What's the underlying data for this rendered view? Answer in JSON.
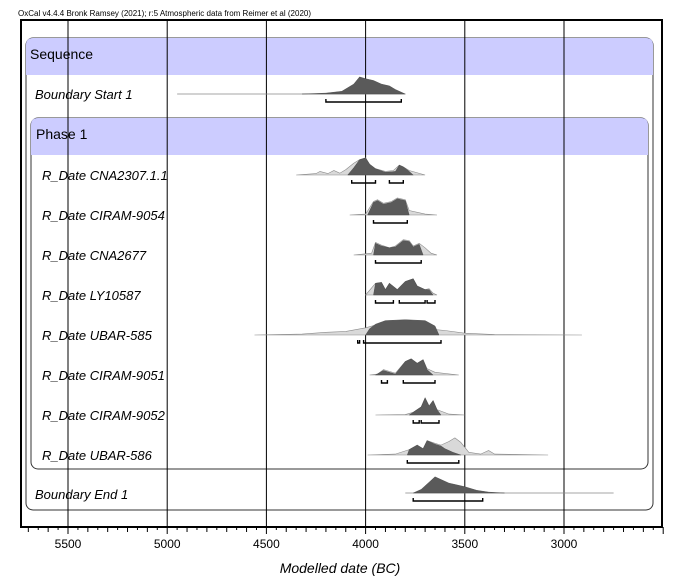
{
  "credit": "OxCal v4.4.4 Bronk Ramsey (2021); r:5 Atmospheric data from Reimer et al (2020)",
  "chart_data": {
    "type": "sequence-plot",
    "xlabel": "Modelled date (BC)",
    "xlim": [
      5750,
      2500
    ],
    "x_ticks": [
      5500,
      5000,
      4500,
      4000,
      3500,
      3000
    ],
    "grid": "vertical lines at major ticks",
    "sequence": {
      "label": "Sequence",
      "start": {
        "label": "Boundary Start 1",
        "prior": null,
        "posterior": [
          [
            4320,
            0
          ],
          [
            4200,
            0.05
          ],
          [
            4120,
            0.15
          ],
          [
            4060,
            0.55
          ],
          [
            4030,
            0.95
          ],
          [
            4000,
            0.85
          ],
          [
            3960,
            0.75
          ],
          [
            3920,
            0.55
          ],
          [
            3880,
            0.45
          ],
          [
            3850,
            0.25
          ],
          [
            3800,
            0
          ]
        ],
        "tail": [
          4950,
          3800
        ],
        "range": [
          [
            4200,
            3820
          ]
        ]
      },
      "phase": {
        "label": "Phase 1",
        "dates": [
          {
            "label": "R_Date CNA2307.1.1",
            "prior": [
              [
                4350,
                0
              ],
              [
                4250,
                0.08
              ],
              [
                4230,
                0.2
              ],
              [
                4190,
                0.08
              ],
              [
                4160,
                0.25
              ],
              [
                4130,
                0.1
              ],
              [
                4100,
                0.3
              ],
              [
                4060,
                0.65
              ],
              [
                4030,
                0.85
              ],
              [
                4000,
                0.95
              ],
              [
                3980,
                0.6
              ],
              [
                3950,
                0.35
              ],
              [
                3900,
                0.2
              ],
              [
                3860,
                0.25
              ],
              [
                3830,
                0.55
              ],
              [
                3810,
                0.45
              ],
              [
                3780,
                0.25
              ],
              [
                3700,
                0
              ]
            ],
            "posterior": [
              [
                4090,
                0
              ],
              [
                4060,
                0.4
              ],
              [
                4030,
                0.85
              ],
              [
                4000,
                0.95
              ],
              [
                3980,
                0.6
              ],
              [
                3950,
                0.35
              ],
              [
                3900,
                0.15
              ],
              [
                3850,
                0.2
              ],
              [
                3830,
                0.55
              ],
              [
                3810,
                0.45
              ],
              [
                3780,
                0.2
              ],
              [
                3760,
                0
              ]
            ],
            "range": [
              [
                4070,
                3950
              ],
              [
                3880,
                3810
              ]
            ]
          },
          {
            "label": "R_Date CIRAM-9054",
            "prior": [
              [
                4080,
                0
              ],
              [
                4000,
                0.05
              ],
              [
                3960,
                0.75
              ],
              [
                3940,
                0.85
              ],
              [
                3910,
                0.65
              ],
              [
                3870,
                0.75
              ],
              [
                3840,
                0.95
              ],
              [
                3800,
                0.85
              ],
              [
                3780,
                0.25
              ],
              [
                3700,
                0.05
              ],
              [
                3640,
                0
              ]
            ],
            "posterior": [
              [
                3990,
                0
              ],
              [
                3960,
                0.7
              ],
              [
                3940,
                0.8
              ],
              [
                3910,
                0.6
              ],
              [
                3870,
                0.7
              ],
              [
                3840,
                0.9
              ],
              [
                3800,
                0.8
              ],
              [
                3780,
                0
              ]
            ],
            "range": [
              [
                3960,
                3790
              ]
            ]
          },
          {
            "label": "R_Date CNA2677",
            "prior": [
              [
                4060,
                0
              ],
              [
                3970,
                0.1
              ],
              [
                3950,
                0.7
              ],
              [
                3920,
                0.55
              ],
              [
                3880,
                0.4
              ],
              [
                3850,
                0.5
              ],
              [
                3810,
                0.85
              ],
              [
                3780,
                0.8
              ],
              [
                3760,
                0.5
              ],
              [
                3730,
                0.65
              ],
              [
                3700,
                0.4
              ],
              [
                3670,
                0.1
              ],
              [
                3640,
                0
              ]
            ],
            "posterior": [
              [
                3960,
                0
              ],
              [
                3950,
                0.65
              ],
              [
                3920,
                0.5
              ],
              [
                3880,
                0.4
              ],
              [
                3850,
                0.45
              ],
              [
                3810,
                0.8
              ],
              [
                3780,
                0.75
              ],
              [
                3760,
                0.45
              ],
              [
                3730,
                0.6
              ],
              [
                3710,
                0
              ]
            ],
            "range": [
              [
                3950,
                3720
              ]
            ]
          },
          {
            "label": "R_Date LY10587",
            "prior": [
              [
                4000,
                0
              ],
              [
                3950,
                0.65
              ],
              [
                3920,
                0.7
              ],
              [
                3900,
                0.3
              ],
              [
                3880,
                0.65
              ],
              [
                3840,
                0.3
              ],
              [
                3800,
                0.75
              ],
              [
                3760,
                0.9
              ],
              [
                3740,
                0.5
              ],
              [
                3700,
                0.3
              ],
              [
                3680,
                0.35
              ],
              [
                3660,
                0.1
              ],
              [
                3640,
                0
              ]
            ],
            "posterior": [
              [
                3960,
                0
              ],
              [
                3950,
                0.65
              ],
              [
                3920,
                0.7
              ],
              [
                3900,
                0.3
              ],
              [
                3880,
                0.65
              ],
              [
                3840,
                0.3
              ],
              [
                3800,
                0.75
              ],
              [
                3760,
                0.9
              ],
              [
                3740,
                0.5
              ],
              [
                3700,
                0.3
              ],
              [
                3680,
                0.3
              ],
              [
                3660,
                0
              ]
            ],
            "range": [
              [
                3950,
                3860
              ],
              [
                3830,
                3700
              ],
              [
                3690,
                3650
              ]
            ]
          },
          {
            "label": "R_Date UBAR-585",
            "prior": [
              [
                4560,
                0
              ],
              [
                4320,
                0.05
              ],
              [
                4200,
                0.15
              ],
              [
                4100,
                0.2
              ],
              [
                4000,
                0.4
              ],
              [
                3950,
                0.55
              ],
              [
                3900,
                0.75
              ],
              [
                3800,
                0.8
              ],
              [
                3700,
                0.75
              ],
              [
                3650,
                0.3
              ],
              [
                3600,
                0.25
              ],
              [
                3500,
                0.1
              ],
              [
                3350,
                0.02
              ],
              [
                2910,
                0
              ]
            ],
            "posterior": [
              [
                4000,
                0
              ],
              [
                3980,
                0.35
              ],
              [
                3950,
                0.6
              ],
              [
                3900,
                0.8
              ],
              [
                3800,
                0.85
              ],
              [
                3700,
                0.8
              ],
              [
                3650,
                0.5
              ],
              [
                3630,
                0
              ]
            ],
            "range": [
              [
                4040,
                4030
              ],
              [
                4010,
                3620
              ]
            ]
          },
          {
            "label": "R_Date CIRAM-9051",
            "prior": [
              [
                3980,
                0
              ],
              [
                3940,
                0.05
              ],
              [
                3910,
                0.3
              ],
              [
                3880,
                0.2
              ],
              [
                3850,
                0.1
              ],
              [
                3800,
                0.75
              ],
              [
                3770,
                0.9
              ],
              [
                3740,
                0.65
              ],
              [
                3710,
                0.85
              ],
              [
                3690,
                0.35
              ],
              [
                3650,
                0.15
              ],
              [
                3530,
                0
              ]
            ],
            "posterior": [
              [
                3950,
                0
              ],
              [
                3910,
                0.25
              ],
              [
                3880,
                0.15
              ],
              [
                3850,
                0.05
              ],
              [
                3800,
                0.75
              ],
              [
                3770,
                0.9
              ],
              [
                3740,
                0.65
              ],
              [
                3710,
                0.85
              ],
              [
                3690,
                0.3
              ],
              [
                3660,
                0
              ]
            ],
            "range": [
              [
                3920,
                3890
              ],
              [
                3810,
                3650
              ]
            ]
          },
          {
            "label": "R_Date CIRAM-9052",
            "prior": [
              [
                3950,
                0
              ],
              [
                3800,
                0.02
              ],
              [
                3760,
                0.15
              ],
              [
                3720,
                0.45
              ],
              [
                3700,
                0.95
              ],
              [
                3680,
                0.5
              ],
              [
                3660,
                0.8
              ],
              [
                3640,
                0.3
              ],
              [
                3580,
                0.05
              ],
              [
                3500,
                0
              ]
            ],
            "posterior": [
              [
                3780,
                0
              ],
              [
                3760,
                0.15
              ],
              [
                3720,
                0.45
              ],
              [
                3700,
                0.95
              ],
              [
                3680,
                0.5
              ],
              [
                3660,
                0.8
              ],
              [
                3640,
                0.3
              ],
              [
                3620,
                0
              ]
            ],
            "range": [
              [
                3760,
                3730
              ],
              [
                3720,
                3630
              ]
            ]
          },
          {
            "label": "R_Date UBAR-586",
            "prior": [
              [
                3990,
                0
              ],
              [
                3850,
                0.05
              ],
              [
                3780,
                0.3
              ],
              [
                3740,
                0.55
              ],
              [
                3710,
                0.35
              ],
              [
                3690,
                0.8
              ],
              [
                3650,
                0.65
              ],
              [
                3620,
                0.55
              ],
              [
                3580,
                0.75
              ],
              [
                3550,
                0.95
              ],
              [
                3520,
                0.7
              ],
              [
                3480,
                0.15
              ],
              [
                3420,
                0.05
              ],
              [
                3380,
                0.25
              ],
              [
                3350,
                0.05
              ],
              [
                3080,
                0
              ]
            ],
            "posterior": [
              [
                3790,
                0
              ],
              [
                3780,
                0.3
              ],
              [
                3740,
                0.55
              ],
              [
                3710,
                0.35
              ],
              [
                3690,
                0.8
              ],
              [
                3650,
                0.6
              ],
              [
                3620,
                0.5
              ],
              [
                3600,
                0.35
              ],
              [
                3560,
                0.15
              ],
              [
                3520,
                0
              ]
            ],
            "range": [
              [
                3790,
                3530
              ]
            ]
          }
        ]
      },
      "end": {
        "label": "Boundary End 1",
        "prior": null,
        "posterior": [
          [
            3760,
            0
          ],
          [
            3720,
            0.2
          ],
          [
            3680,
            0.6
          ],
          [
            3650,
            0.9
          ],
          [
            3620,
            0.75
          ],
          [
            3580,
            0.55
          ],
          [
            3540,
            0.45
          ],
          [
            3500,
            0.35
          ],
          [
            3440,
            0.15
          ],
          [
            3380,
            0.05
          ],
          [
            3300,
            0
          ]
        ],
        "tail": [
          3800,
          2750
        ],
        "range": [
          [
            3760,
            3410
          ]
        ]
      }
    }
  }
}
